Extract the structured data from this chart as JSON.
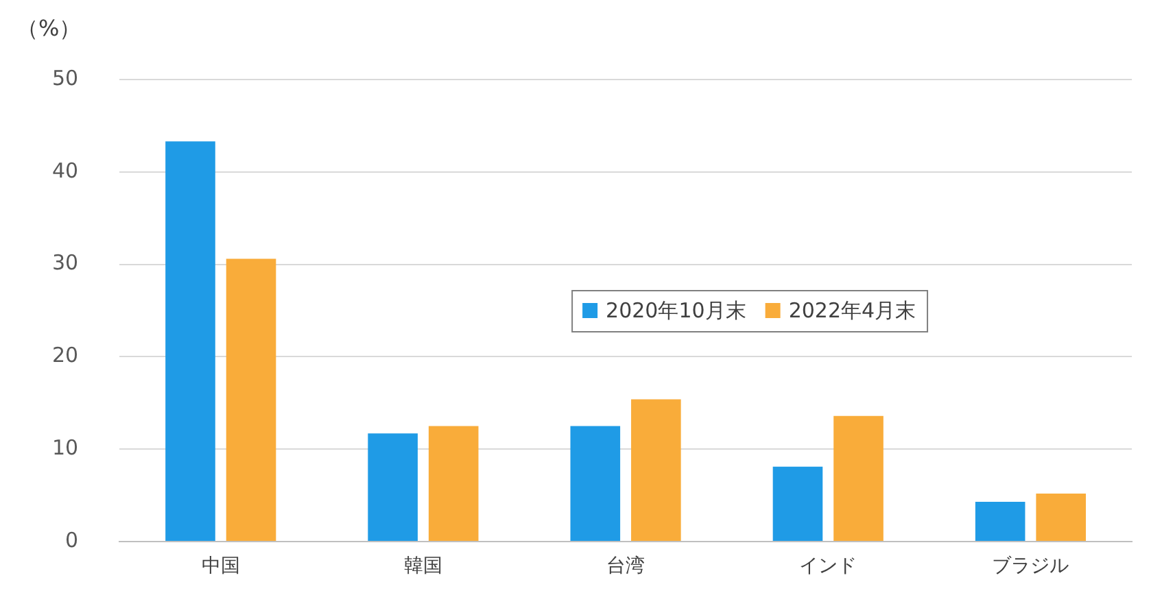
{
  "chart_data": {
    "type": "bar",
    "ylabel": "（%）",
    "categories": [
      "中国",
      "韓国",
      "台湾",
      "インド",
      "ブラジル"
    ],
    "series": [
      {
        "name": "2020年10月末",
        "color": "#1f9be6",
        "values": [
          43.3,
          11.7,
          12.5,
          8.1,
          4.3
        ]
      },
      {
        "name": "2022年4月末",
        "color": "#f9ac3a",
        "values": [
          30.6,
          12.5,
          15.4,
          13.6,
          5.2
        ]
      }
    ],
    "ylim": [
      0,
      50
    ],
    "yticks": [
      0,
      10,
      20,
      30,
      40,
      50
    ],
    "grid": "y",
    "legend": "center"
  }
}
